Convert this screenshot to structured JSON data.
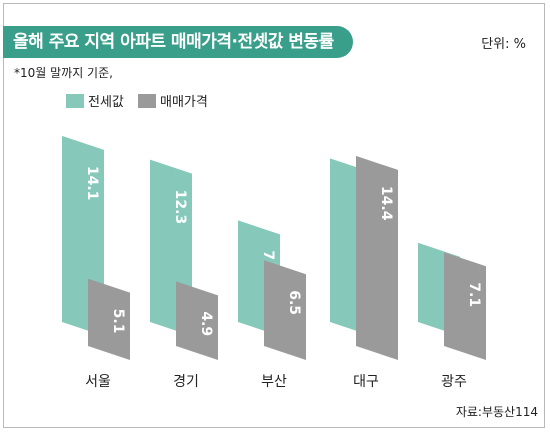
{
  "title": "올해 주요 지역 아파트 매매가격·전셋값 변동률",
  "unit": "단위: %",
  "note": "*10월 말까지 기준,",
  "source": "자료:부동산114",
  "colors": {
    "jeonse": "#86c9bb",
    "sale": "#9a9a9a",
    "title_bg": "#3a9f8a"
  },
  "chart_data": {
    "type": "bar",
    "categories": [
      "서울",
      "경기",
      "부산",
      "대구",
      "광주"
    ],
    "series": [
      {
        "name": "전세값",
        "values": [
          14.1,
          12.3,
          7.7,
          12.4,
          6
        ]
      },
      {
        "name": "매매가격",
        "values": [
          5.1,
          4.9,
          6.5,
          14.4,
          7.1
        ]
      }
    ],
    "value_labels": {
      "전세값": [
        "14.1",
        "12.3",
        "7.7",
        "12.4",
        "6"
      ],
      "매매가격": [
        "5.1",
        "4.9",
        "6.5",
        "14.4",
        "7.1"
      ]
    },
    "legend": "top-left",
    "grid": false
  }
}
